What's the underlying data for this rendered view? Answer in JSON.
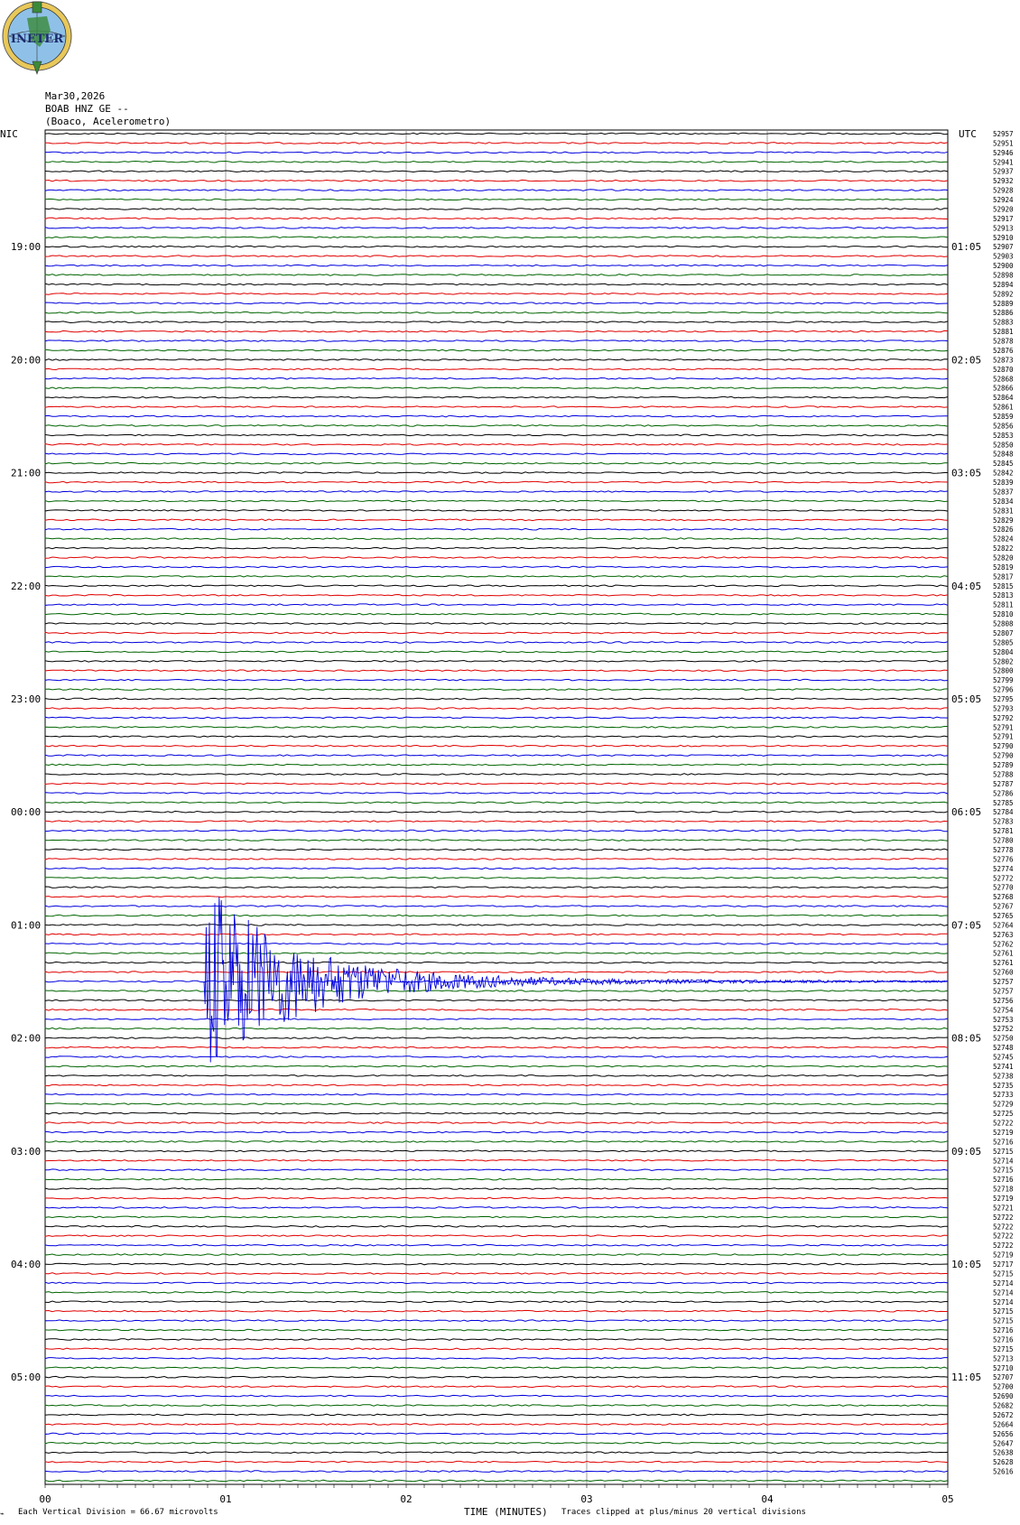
{
  "header": {
    "date": "Mar30,2026",
    "station": "BOAB HNZ GE --",
    "location": "(Boaco, Acelerometro)",
    "logo_text": "INETER"
  },
  "labels": {
    "left_zone": "NIC",
    "right_zone": "UTC",
    "xlabel": "TIME (MINUTES)",
    "scale_note": "Each Vertical Division =",
    "scale_value": "66.67 microvolts",
    "clip_note": "Traces clipped at plus/minus 20 vertical divisions"
  },
  "chart_data": {
    "type": "line",
    "title": "",
    "xlabel": "TIME (MINUTES)",
    "xlim": [
      0,
      5
    ],
    "x_ticks": [
      "00",
      "01",
      "02",
      "03",
      "04",
      "05"
    ],
    "trace_count": 144,
    "trace_colors": [
      "#000000",
      "#e00000",
      "#0000dd",
      "#006400"
    ],
    "left_hour_labels": [
      {
        "trace": 12,
        "label": "19:00"
      },
      {
        "trace": 24,
        "label": "20:00"
      },
      {
        "trace": 36,
        "label": "21:00"
      },
      {
        "trace": 48,
        "label": "22:00"
      },
      {
        "trace": 60,
        "label": "23:00"
      },
      {
        "trace": 72,
        "label": "00:00"
      },
      {
        "trace": 84,
        "label": "01:00"
      },
      {
        "trace": 96,
        "label": "02:00"
      },
      {
        "trace": 108,
        "label": "03:00"
      },
      {
        "trace": 120,
        "label": "04:00"
      },
      {
        "trace": 132,
        "label": "05:00"
      }
    ],
    "right_hour_labels": [
      {
        "trace": 12,
        "label": "01:05"
      },
      {
        "trace": 24,
        "label": "02:05"
      },
      {
        "trace": 36,
        "label": "03:05"
      },
      {
        "trace": 48,
        "label": "04:05"
      },
      {
        "trace": 60,
        "label": "05:05"
      },
      {
        "trace": 72,
        "label": "06:05"
      },
      {
        "trace": 84,
        "label": "07:05"
      },
      {
        "trace": 96,
        "label": "08:05"
      },
      {
        "trace": 108,
        "label": "09:05"
      },
      {
        "trace": 120,
        "label": "10:05"
      },
      {
        "trace": 132,
        "label": "11:05"
      }
    ],
    "trace_values": [
      "52957",
      "52951",
      "52946",
      "52941",
      "52937",
      "52932",
      "52928",
      "52924",
      "52920",
      "52917",
      "52913",
      "52910",
      "52907",
      "52903",
      "52900",
      "52898",
      "52894",
      "52892",
      "52889",
      "52886",
      "52883",
      "52881",
      "52878",
      "52876",
      "52873",
      "52870",
      "52868",
      "52866",
      "52864",
      "52861",
      "52859",
      "52856",
      "52853",
      "52850",
      "52848",
      "52845",
      "52842",
      "52839",
      "52837",
      "52834",
      "52831",
      "52829",
      "52826",
      "52824",
      "52822",
      "52820",
      "52819",
      "52817",
      "52815",
      "52813",
      "52811",
      "52810",
      "52808",
      "52807",
      "52805",
      "52804",
      "52802",
      "52800",
      "52799",
      "52796",
      "52795",
      "52793",
      "52792",
      "52791",
      "52791",
      "52790",
      "52790",
      "52789",
      "52788",
      "52787",
      "52786",
      "52785",
      "52784",
      "52783",
      "52781",
      "52780",
      "52778",
      "52776",
      "52774",
      "52772",
      "52770",
      "52768",
      "52767",
      "52765",
      "52764",
      "52763",
      "52762",
      "52761",
      "52761",
      "52760",
      "52757",
      "52757",
      "52756",
      "52754",
      "52753",
      "52752",
      "52750",
      "52748",
      "52745",
      "52741",
      "52738",
      "52735",
      "52733",
      "52729",
      "52725",
      "52722",
      "52719",
      "52716",
      "52715",
      "52714",
      "52715",
      "52716",
      "52718",
      "52719",
      "52721",
      "52722",
      "52722",
      "52722",
      "52722",
      "52719",
      "52717",
      "52715",
      "52714",
      "52714",
      "52714",
      "52715",
      "52715",
      "52716",
      "52716",
      "52715",
      "52713",
      "52710",
      "52707",
      "52700",
      "52690",
      "52682",
      "52672",
      "52664",
      "52656",
      "52647",
      "52638",
      "52628",
      "52616",
      ""
    ],
    "events": [
      {
        "trace": 90,
        "start_minute": 0.88,
        "peak_minute": 0.9,
        "end_minute": 5.0,
        "description": "earthquake signal, clipped"
      }
    ]
  }
}
